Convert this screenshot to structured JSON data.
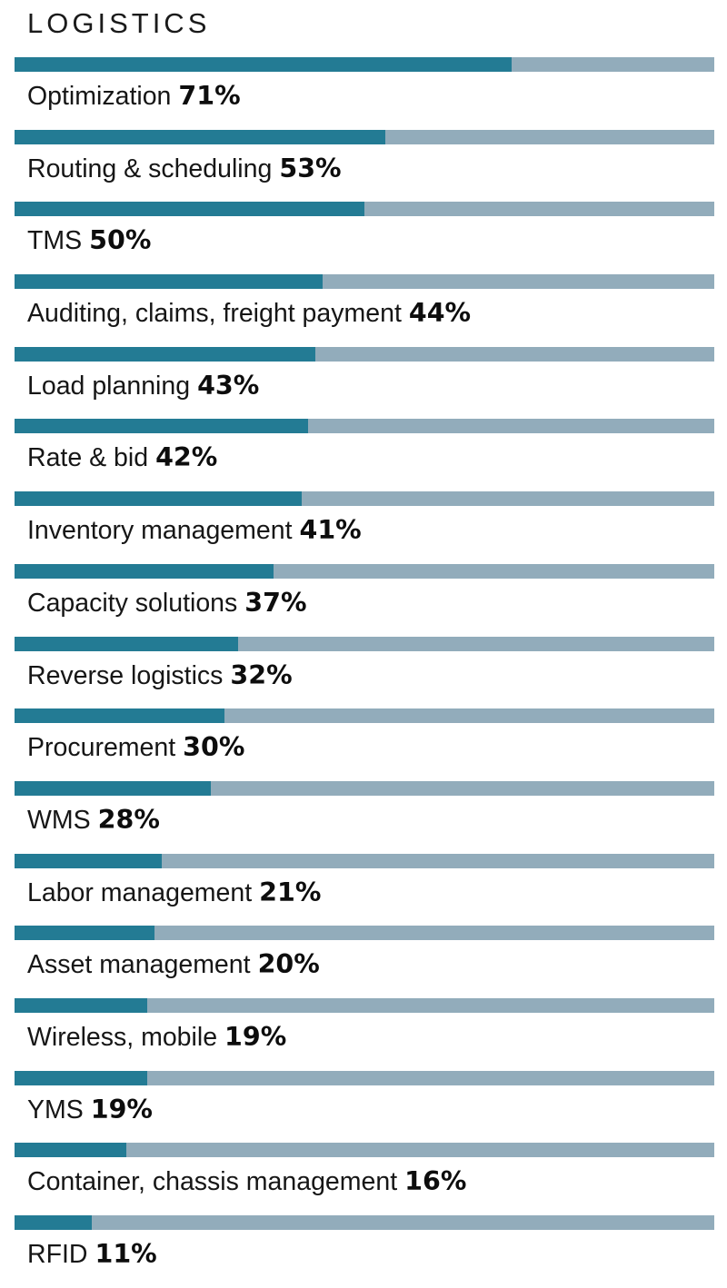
{
  "colors": {
    "fill": "#237b94",
    "track": "#92acbb",
    "text": "#161616"
  },
  "chart_data": {
    "type": "bar",
    "orientation": "horizontal",
    "title": "LOGISTICS",
    "ylim": [
      0,
      100
    ],
    "unit": "%",
    "categories": [
      "Optimization",
      "Routing & scheduling",
      "TMS",
      "Auditing, claims, freight payment",
      "Load planning",
      "Rate & bid",
      "Inventory management",
      "Capacity solutions",
      "Reverse logistics",
      "Procurement",
      "WMS",
      "Labor management",
      "Asset management",
      "Wireless, mobile",
      "YMS",
      "Container, chassis management",
      "RFID"
    ],
    "values": [
      71,
      53,
      50,
      44,
      43,
      42,
      41,
      37,
      32,
      30,
      28,
      21,
      20,
      19,
      19,
      16,
      11
    ],
    "value_labels": [
      "71%",
      "53%",
      "50%",
      "44%",
      "43%",
      "42%",
      "41%",
      "37%",
      "32%",
      "30%",
      "28%",
      "21%",
      "20%",
      "19%",
      "19%",
      "16%",
      "11%"
    ]
  }
}
